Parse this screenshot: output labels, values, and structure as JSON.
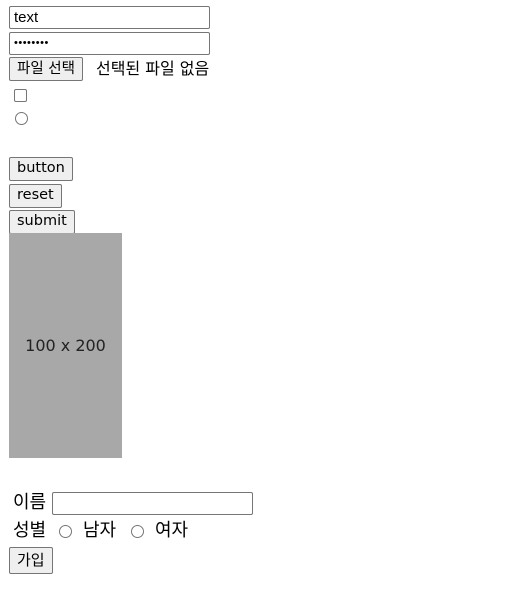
{
  "inputs": {
    "text_value": "text",
    "password_mask": "••••••••"
  },
  "file": {
    "button_label": "파일 선택",
    "status": "선택된 파일 없음"
  },
  "buttons": {
    "button_label": "button",
    "reset_label": "reset",
    "submit_label": "submit"
  },
  "image": {
    "label": "100 x 200",
    "fill_color": "#a8a8a8"
  },
  "signup_form": {
    "name_label": "이름",
    "name_value": "",
    "gender_label": "성별",
    "gender_options": [
      "남자",
      "여자"
    ],
    "join_label": "가입"
  }
}
